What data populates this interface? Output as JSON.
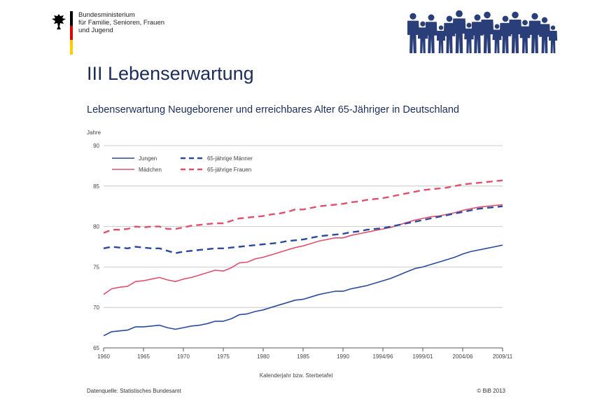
{
  "header": {
    "ministry_lines": [
      "Bundesministerium",
      "für Familie, Senioren, Frauen",
      "und Jugend"
    ],
    "colors": {
      "flag_black": "#000000",
      "flag_red": "#dd0000",
      "flag_gold": "#ffcc00",
      "people": "#2a3f7a"
    }
  },
  "section_title": "III Lebenserwartung",
  "chart_title": "Lebenserwartung Neugeborener und erreichbares Alter 65-Jähriger in Deutschland",
  "footer": {
    "source": "Datenquelle: Statistisches Bundesamt",
    "copyright": "© BiB 2013"
  },
  "chart_data": {
    "type": "line",
    "ylabel": "Jahre",
    "xlabel": "Kalenderjahr bzw. Sterbetafel",
    "ylim": [
      65,
      90
    ],
    "yticks": [
      "65",
      "70",
      "75",
      "80",
      "85",
      "90"
    ],
    "grid": true,
    "legend_position": "top-left",
    "x": [
      "1960",
      "1961",
      "1962",
      "1963",
      "1964",
      "1965",
      "1966",
      "1967",
      "1968",
      "1969",
      "1970",
      "1971",
      "1972",
      "1973",
      "1974",
      "1975",
      "1976",
      "1977",
      "1978",
      "1979",
      "1980",
      "1981",
      "1982",
      "1983",
      "1984",
      "1985",
      "1986",
      "1987",
      "1988",
      "1989",
      "1990",
      "1991",
      "1992",
      "1993",
      "1994",
      "1995",
      "1996",
      "1997",
      "1998",
      "1999",
      "2000",
      "2001",
      "2002",
      "2003",
      "2004",
      "2005",
      "2006",
      "2007",
      "2008",
      "2009",
      "2010"
    ],
    "xtick_labels": [
      "1960",
      "1965",
      "1970",
      "1975",
      "1980",
      "1985",
      "1990",
      "1994/96",
      "1999/01",
      "2004/06",
      "2009/11"
    ],
    "series": [
      {
        "name": "Jungen",
        "color": "#2b4a9b",
        "dash": false,
        "values": [
          66.5,
          67.0,
          67.1,
          67.2,
          67.6,
          67.6,
          67.7,
          67.8,
          67.5,
          67.3,
          67.5,
          67.7,
          67.8,
          68.0,
          68.3,
          68.3,
          68.6,
          69.1,
          69.2,
          69.5,
          69.7,
          70.0,
          70.3,
          70.6,
          70.9,
          71.0,
          71.3,
          71.6,
          71.8,
          72.0,
          72.0,
          72.3,
          72.5,
          72.7,
          73.0,
          73.3,
          73.6,
          74.0,
          74.4,
          74.8,
          75.0,
          75.3,
          75.6,
          75.9,
          76.2,
          76.6,
          76.9,
          77.1,
          77.3,
          77.5,
          77.7
        ]
      },
      {
        "name": "Mädchen",
        "color": "#e0506e",
        "dash": false,
        "values": [
          71.6,
          72.3,
          72.5,
          72.6,
          73.2,
          73.3,
          73.5,
          73.7,
          73.4,
          73.2,
          73.5,
          73.7,
          74.0,
          74.3,
          74.6,
          74.5,
          74.9,
          75.5,
          75.6,
          76.0,
          76.2,
          76.5,
          76.8,
          77.1,
          77.4,
          77.6,
          77.9,
          78.2,
          78.4,
          78.6,
          78.6,
          78.9,
          79.1,
          79.3,
          79.5,
          79.7,
          79.9,
          80.2,
          80.5,
          80.8,
          81.0,
          81.2,
          81.3,
          81.5,
          81.7,
          82.0,
          82.2,
          82.4,
          82.5,
          82.6,
          82.7
        ]
      },
      {
        "name": "65-jährige Männer",
        "color": "#2b4a9b",
        "dash": true,
        "values": [
          77.3,
          77.5,
          77.4,
          77.3,
          77.5,
          77.4,
          77.3,
          77.3,
          77.0,
          76.7,
          76.9,
          77.0,
          77.1,
          77.2,
          77.3,
          77.3,
          77.4,
          77.5,
          77.6,
          77.7,
          77.8,
          77.9,
          78.0,
          78.2,
          78.3,
          78.4,
          78.6,
          78.8,
          78.9,
          79.0,
          79.1,
          79.3,
          79.4,
          79.6,
          79.7,
          79.8,
          80.0,
          80.2,
          80.4,
          80.6,
          80.8,
          81.0,
          81.2,
          81.4,
          81.6,
          81.8,
          82.0,
          82.2,
          82.3,
          82.4,
          82.5
        ]
      },
      {
        "name": "65-jährige Frauen",
        "color": "#e0506e",
        "dash": true,
        "values": [
          79.2,
          79.6,
          79.6,
          79.7,
          80.0,
          79.9,
          80.0,
          80.0,
          79.7,
          79.7,
          79.9,
          80.1,
          80.2,
          80.3,
          80.4,
          80.4,
          80.7,
          81.0,
          81.1,
          81.2,
          81.3,
          81.5,
          81.6,
          81.8,
          82.1,
          82.1,
          82.3,
          82.5,
          82.6,
          82.7,
          82.8,
          83.0,
          83.1,
          83.3,
          83.4,
          83.5,
          83.7,
          83.9,
          84.1,
          84.3,
          84.5,
          84.6,
          84.7,
          84.8,
          85.0,
          85.2,
          85.3,
          85.4,
          85.5,
          85.6,
          85.7
        ]
      }
    ]
  }
}
